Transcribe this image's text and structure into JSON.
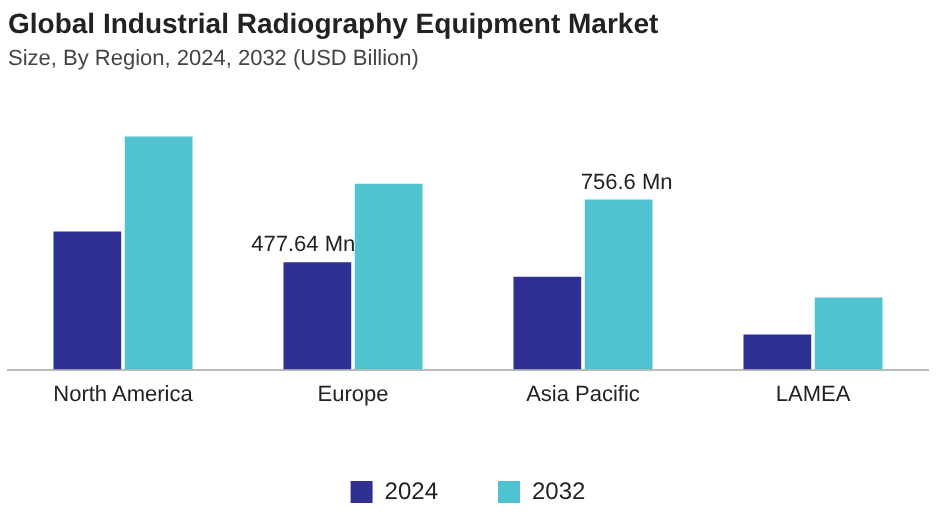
{
  "chart_data": {
    "type": "bar",
    "title": "Global Industrial Radiography Equipment Market",
    "subtitle": "Size, By Region, 2024, 2032 (USD Billion)",
    "categories": [
      "North America",
      "Europe",
      "Asia Pacific",
      "LAMEA"
    ],
    "series": [
      {
        "name": "2024",
        "color": "#2e3192",
        "values": [
          615,
          477.64,
          413,
          156
        ],
        "value_labels": [
          null,
          "477.64 Mn",
          null,
          null
        ]
      },
      {
        "name": "2032",
        "color": "#4fc3cf",
        "values": [
          1038,
          827,
          756.6,
          321
        ],
        "value_labels": [
          null,
          null,
          "756.6 Mn",
          null
        ]
      }
    ],
    "tick_labels": "x",
    "grid": false,
    "legend": "bottom"
  }
}
